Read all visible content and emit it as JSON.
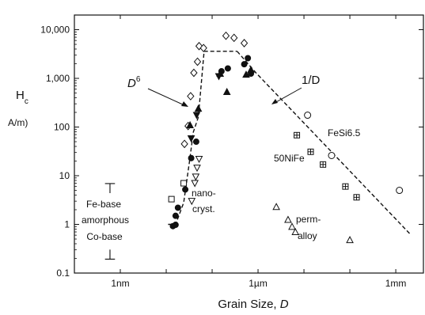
{
  "chart_data": {
    "type": "scatter",
    "title": "",
    "ylabel": "H",
    "ylabel_sub": "c",
    "ylabel_unit": "A/m)",
    "xlabel": "Grain Size, ",
    "xlabel_var": "D",
    "x_scale": "log",
    "y_scale": "log",
    "x_unit": "m",
    "xlim": [
      1e-10,
      0.004
    ],
    "ylim": [
      0.1,
      20000
    ],
    "x_ticks": [
      {
        "value": 1e-09,
        "label": "1nm"
      },
      {
        "value": 1e-06,
        "label": "1µm"
      },
      {
        "value": 0.001,
        "label": "1mm"
      }
    ],
    "y_ticks": [
      {
        "value": 0.1,
        "label": "0.1"
      },
      {
        "value": 1,
        "label": "1"
      },
      {
        "value": 10,
        "label": "10"
      },
      {
        "value": 100,
        "label": "100"
      },
      {
        "value": 1000,
        "label": "1,000"
      },
      {
        "value": 10000,
        "label": "10,000"
      }
    ],
    "grid": false,
    "series": [
      {
        "marker": "open-diamond",
        "points": [
          [
            2.5e-08,
            45
          ],
          [
            3e-08,
            105
          ],
          [
            3.4e-08,
            430
          ],
          [
            4e-08,
            1300
          ],
          [
            4.8e-08,
            2200
          ],
          [
            5.2e-08,
            4600
          ],
          [
            6.5e-08,
            4200
          ],
          [
            2e-07,
            7500
          ],
          [
            3e-07,
            6800
          ],
          [
            5e-07,
            5300
          ]
        ]
      },
      {
        "marker": "filled-circle",
        "points": [
          [
            1.4e-08,
            0.92
          ],
          [
            1.6e-08,
            0.98
          ],
          [
            1.6e-08,
            1.5
          ],
          [
            1.8e-08,
            2.2
          ],
          [
            2.6e-08,
            5.2
          ],
          [
            3.5e-08,
            23
          ],
          [
            4.5e-08,
            50
          ],
          [
            1.6e-07,
            1400
          ],
          [
            2.2e-07,
            1600
          ],
          [
            5e-07,
            1950
          ],
          [
            6e-07,
            2600
          ],
          [
            7e-07,
            1250
          ]
        ]
      },
      {
        "marker": "filled-triangle",
        "points": [
          [
            3.3e-08,
            110
          ],
          [
            5e-08,
            240
          ],
          [
            1.5e-07,
            1250
          ],
          [
            2.1e-07,
            530
          ],
          [
            5.5e-07,
            1200
          ],
          [
            7e-07,
            1500
          ]
        ]
      },
      {
        "marker": "filled-inverted-triangle",
        "points": [
          [
            3.5e-08,
            58
          ],
          [
            4.6e-08,
            175
          ],
          [
            1.4e-07,
            1100
          ]
        ]
      },
      {
        "marker": "open-inverted-triangle",
        "points": [
          [
            3.6e-08,
            3.0
          ],
          [
            4.2e-08,
            7.0
          ],
          [
            4.4e-08,
            9.5
          ],
          [
            4.7e-08,
            14.5
          ],
          [
            5.2e-08,
            22
          ]
        ]
      },
      {
        "marker": "open-square",
        "points": [
          [
            1.3e-08,
            3.3
          ],
          [
            2.4e-08,
            7.0
          ]
        ]
      },
      {
        "marker": "open-circle",
        "points": [
          [
            1.2e-05,
            175
          ],
          [
            4e-05,
            26
          ],
          [
            0.0012,
            5.0
          ]
        ]
      },
      {
        "marker": "crossed-square",
        "points": [
          [
            7e-06,
            68
          ],
          [
            1.4e-05,
            31
          ],
          [
            2.6e-05,
            17
          ],
          [
            8e-05,
            6.0
          ],
          [
            0.00014,
            3.6
          ]
        ]
      },
      {
        "marker": "open-triangle",
        "points": [
          [
            2.5e-06,
            2.3
          ],
          [
            4.5e-06,
            1.25
          ],
          [
            5.5e-06,
            0.9
          ],
          [
            6.5e-06,
            0.7
          ],
          [
            0.0001,
            0.48
          ]
        ]
      }
    ],
    "fit_lines": [
      {
        "label": "D",
        "exponent": "6",
        "points": [
          [
            1.1e-08,
            1.0
          ],
          [
            1.6e-08,
            1.0
          ],
          [
            2.4e-08,
            2.8
          ],
          [
            3.2e-08,
            19
          ],
          [
            3.9e-08,
            79
          ],
          [
            5e-08,
            160
          ],
          [
            6.7e-08,
            3600
          ],
          [
            3.5e-07,
            3600
          ]
        ]
      },
      {
        "label": "1/D",
        "points": [
          [
            3.5e-07,
            3600
          ],
          [
            9e-07,
            1300
          ],
          [
            0.002,
            0.65
          ]
        ]
      }
    ],
    "annotations": [
      {
        "id": "fe_base",
        "text": "Fe-base"
      },
      {
        "id": "amorphous",
        "text": "amorphous"
      },
      {
        "id": "co_base",
        "text": "Co-base"
      },
      {
        "id": "nano_1",
        "text": "nano-"
      },
      {
        "id": "nano_2",
        "text": "cryst."
      },
      {
        "id": "fesi",
        "text": "FeSi6.5"
      },
      {
        "id": "ninife",
        "text": "50NiFe"
      },
      {
        "id": "perm_1",
        "text": "perm-"
      },
      {
        "id": "perm_2",
        "text": "alloy"
      }
    ],
    "range_markers": [
      {
        "id": "fe_base_marker",
        "symbol": "⊤"
      },
      {
        "id": "co_base_marker",
        "symbol": "⊥"
      }
    ]
  }
}
